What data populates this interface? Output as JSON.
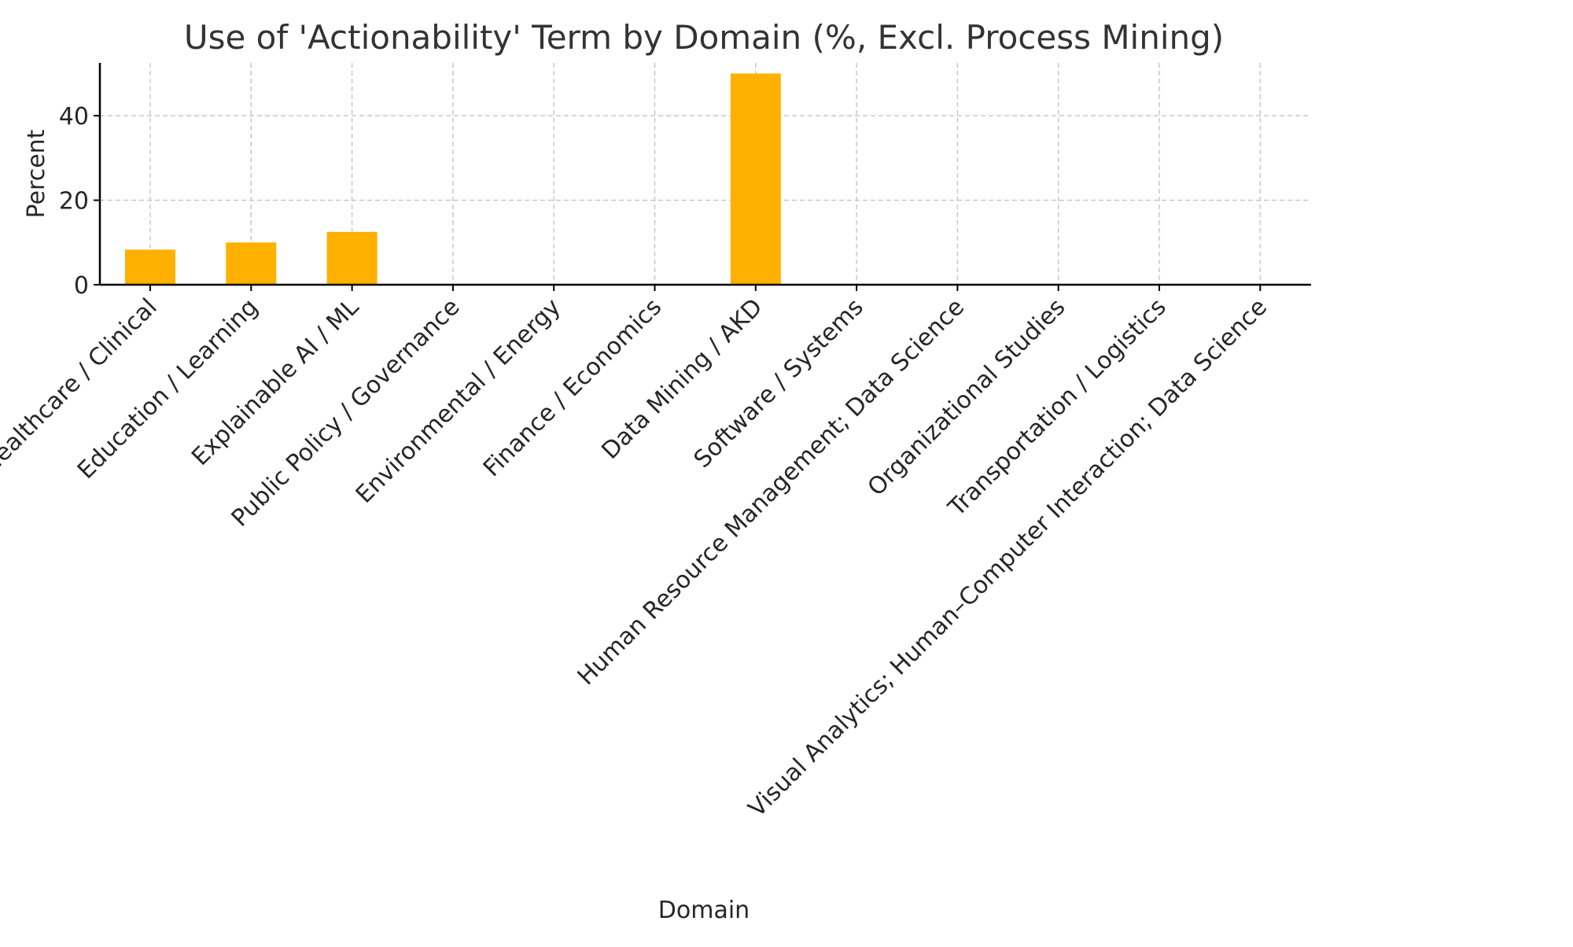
{
  "chart_data": {
    "type": "bar",
    "title": "Use of 'Actionability' Term by Domain (%, Excl. Process Mining)",
    "xlabel": "Domain",
    "ylabel": "Percent",
    "ylim": [
      0,
      52.5
    ],
    "yticks": [
      0,
      20,
      40
    ],
    "grid": true,
    "bar_color": "#ffb000",
    "categories": [
      "Healthcare / Clinical",
      "Education / Learning",
      "Explainable AI / ML",
      "Public Policy / Governance",
      "Environmental / Energy",
      "Finance / Economics",
      "Data Mining / AKD",
      "Software / Systems",
      "Human Resource Management; Data Science",
      "Organizational Studies",
      "Transportation / Logistics",
      "Visual Analytics; Human–Computer Interaction; Data Science"
    ],
    "values": [
      8.3,
      10,
      12.5,
      0,
      0,
      0,
      50,
      0,
      0,
      0,
      0,
      0
    ]
  }
}
